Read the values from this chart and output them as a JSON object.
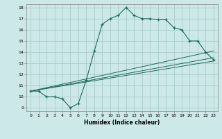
{
  "title": "",
  "xlabel": "Humidex (Indice chaleur)",
  "bg_color": "#cce8e8",
  "grid_color": "#aacccc",
  "line_color": "#1a6b5a",
  "xlim": [
    -0.5,
    23.5
  ],
  "ylim": [
    8.7,
    18.3
  ],
  "xticks": [
    0,
    1,
    2,
    3,
    4,
    5,
    6,
    7,
    8,
    9,
    10,
    11,
    12,
    13,
    14,
    15,
    16,
    17,
    18,
    19,
    20,
    21,
    22,
    23
  ],
  "yticks": [
    9,
    10,
    11,
    12,
    13,
    14,
    15,
    16,
    17,
    18
  ],
  "main_x": [
    0,
    1,
    2,
    3,
    4,
    5,
    6,
    7,
    8,
    9,
    10,
    11,
    12,
    13,
    14,
    15,
    16,
    17,
    18,
    19,
    20,
    21,
    22,
    23
  ],
  "main_y": [
    10.5,
    10.5,
    10.0,
    10.0,
    9.8,
    9.0,
    9.4,
    11.5,
    14.1,
    16.5,
    17.0,
    17.3,
    18.0,
    17.3,
    17.0,
    17.0,
    16.9,
    16.9,
    16.2,
    16.0,
    15.0,
    15.0,
    14.0,
    13.3
  ],
  "line1_x": [
    0,
    23
  ],
  "line1_y": [
    10.5,
    13.2
  ],
  "line2_x": [
    0,
    23
  ],
  "line2_y": [
    10.5,
    13.5
  ],
  "line3_x": [
    0,
    23
  ],
  "line3_y": [
    10.5,
    14.1
  ]
}
